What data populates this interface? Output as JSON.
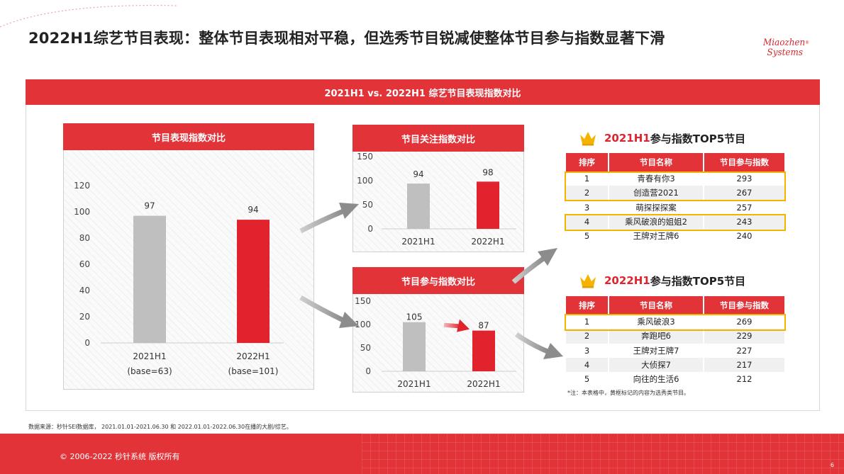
{
  "page": {
    "title": "2022H1综艺节目表现：整体节目表现相对平稳，但选秀节目锐减使整体节目参与指数显著下滑",
    "logo_line1": "Miaozhen",
    "logo_line2": "Systems",
    "logo_reg": "®",
    "banner": "2021H1 vs. 2022H1 综艺节目表现指数对比",
    "source": "数据来源：秒针SEI数据库， 2021.01.01-2021.06.30 和 2022.01.01-2022.06.30在播的大剧/综艺。",
    "copyright": "© 2006-2022 秒针系统 版权所有",
    "page_number": "6"
  },
  "colors": {
    "accent": "#e23339",
    "bar_2021": "#bfbfbf",
    "bar_2022": "#e0232c",
    "highlight": "#f5b300"
  },
  "chart_data": [
    {
      "id": "performance",
      "type": "bar",
      "title": "节目表现指数对比",
      "categories": [
        "2021H1",
        "2022H1"
      ],
      "category_sublabels": [
        "(base=63)",
        "(base=101)"
      ],
      "values": [
        97,
        94
      ],
      "ylim": [
        0,
        120
      ],
      "yticks": [
        0,
        20,
        40,
        60,
        80,
        100,
        120
      ],
      "grid": false,
      "legend": "none"
    },
    {
      "id": "attention",
      "type": "bar",
      "title": "节目关注指数对比",
      "categories": [
        "2021H1",
        "2022H1"
      ],
      "values": [
        94,
        98
      ],
      "ylim": [
        0,
        150
      ],
      "yticks": [
        0,
        50,
        100,
        150
      ],
      "grid": false,
      "legend": "none"
    },
    {
      "id": "participation",
      "type": "bar",
      "title": "节目参与指数对比",
      "categories": [
        "2021H1",
        "2022H1"
      ],
      "values": [
        105,
        87
      ],
      "ylim": [
        0,
        150
      ],
      "yticks": [
        0,
        50,
        100,
        150
      ],
      "grid": false,
      "legend": "none",
      "annotation": "decline-arrow"
    }
  ],
  "top5_2021": {
    "title_highlight": "2021H1",
    "title_rest": "参与指数TOP5节目",
    "headers": [
      "排序",
      "节目名称",
      "节目参与指数"
    ],
    "rows": [
      [
        "1",
        "青春有你3",
        "293"
      ],
      [
        "2",
        "创造营2021",
        "267"
      ],
      [
        "3",
        "萌探探探案",
        "257"
      ],
      [
        "4",
        "乘风破浪的姐姐2",
        "243"
      ],
      [
        "5",
        "王牌对王牌6",
        "240"
      ]
    ]
  },
  "top5_2022": {
    "title_highlight": "2022H1",
    "title_rest": "参与指数TOP5节目",
    "headers": [
      "排序",
      "节目名称",
      "节目参与指数"
    ],
    "rows": [
      [
        "1",
        "乘风破浪3",
        "269"
      ],
      [
        "2",
        "奔跑吧6",
        "229"
      ],
      [
        "3",
        "王牌对王牌7",
        "227"
      ],
      [
        "4",
        "大侦探7",
        "217"
      ],
      [
        "5",
        "向往的生活6",
        "212"
      ]
    ],
    "note": "*注：本表格中，黄框标记的内容为选秀类节目。"
  }
}
